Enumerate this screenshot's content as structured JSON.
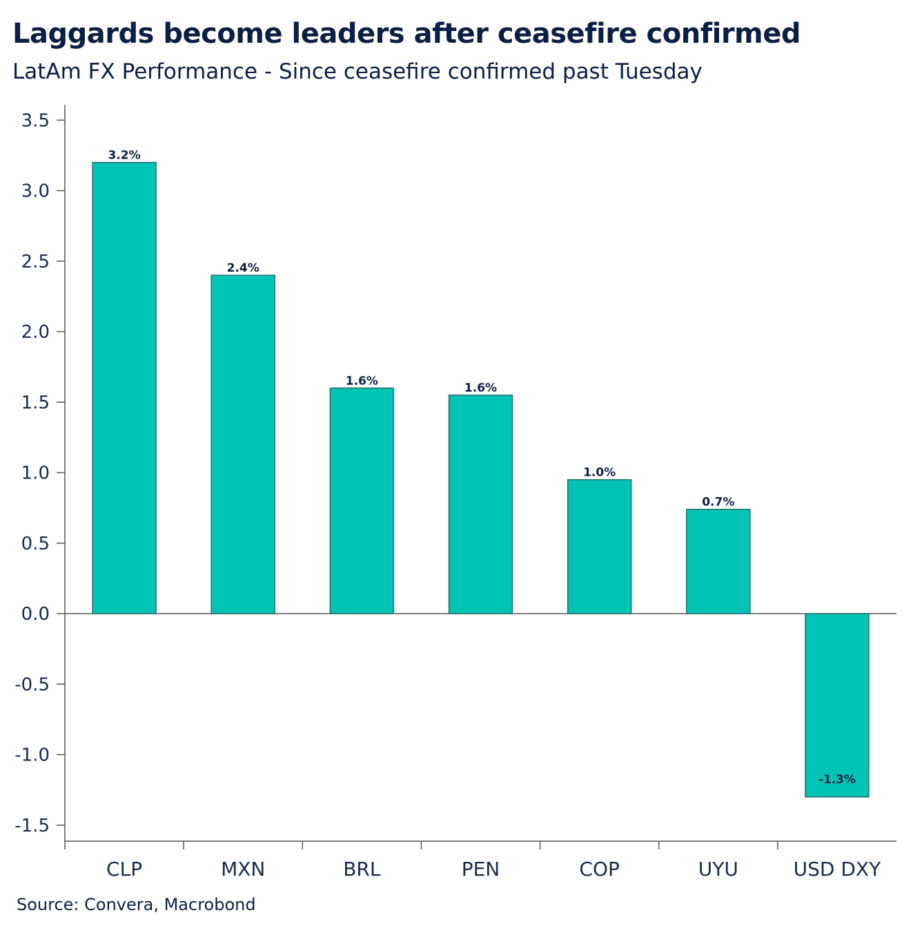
{
  "header": {
    "title": "Laggards become leaders after ceasefire confirmed",
    "subtitle": "LatAm FX Performance - Since ceasefire confirmed past Tuesday"
  },
  "footer": {
    "source": "Source: Convera, Macrobond"
  },
  "colors": {
    "bar_fill": "#00c4b3",
    "bar_stroke": "#2a6f6a",
    "axis": "#555555",
    "text": "#0b1f44"
  },
  "chart_data": {
    "type": "bar",
    "title": "Laggards become leaders after ceasefire confirmed",
    "subtitle": "LatAm FX Performance - Since ceasefire confirmed past Tuesday",
    "xlabel": "",
    "ylabel": "",
    "categories": [
      "CLP",
      "MXN",
      "BRL",
      "PEN",
      "COP",
      "UYU",
      "USD DXY"
    ],
    "values": [
      3.2,
      2.4,
      1.6,
      1.55,
      0.95,
      0.74,
      -1.3
    ],
    "data_labels": [
      "3.2%",
      "2.4%",
      "1.6%",
      "1.6%",
      "1.0%",
      "0.7%",
      "-1.3%"
    ],
    "ylim": [
      -1.6,
      3.6
    ],
    "yticks": [
      "3.5",
      "3.0",
      "2.5",
      "2.0",
      "1.5",
      "1.0",
      "0.5",
      "0.0",
      "-0.5",
      "-1.0",
      "-1.5"
    ],
    "ytick_values": [
      3.5,
      3.0,
      2.5,
      2.0,
      1.5,
      1.0,
      0.5,
      0.0,
      -0.5,
      -1.0,
      -1.5
    ],
    "grid": false,
    "legend": "none"
  }
}
